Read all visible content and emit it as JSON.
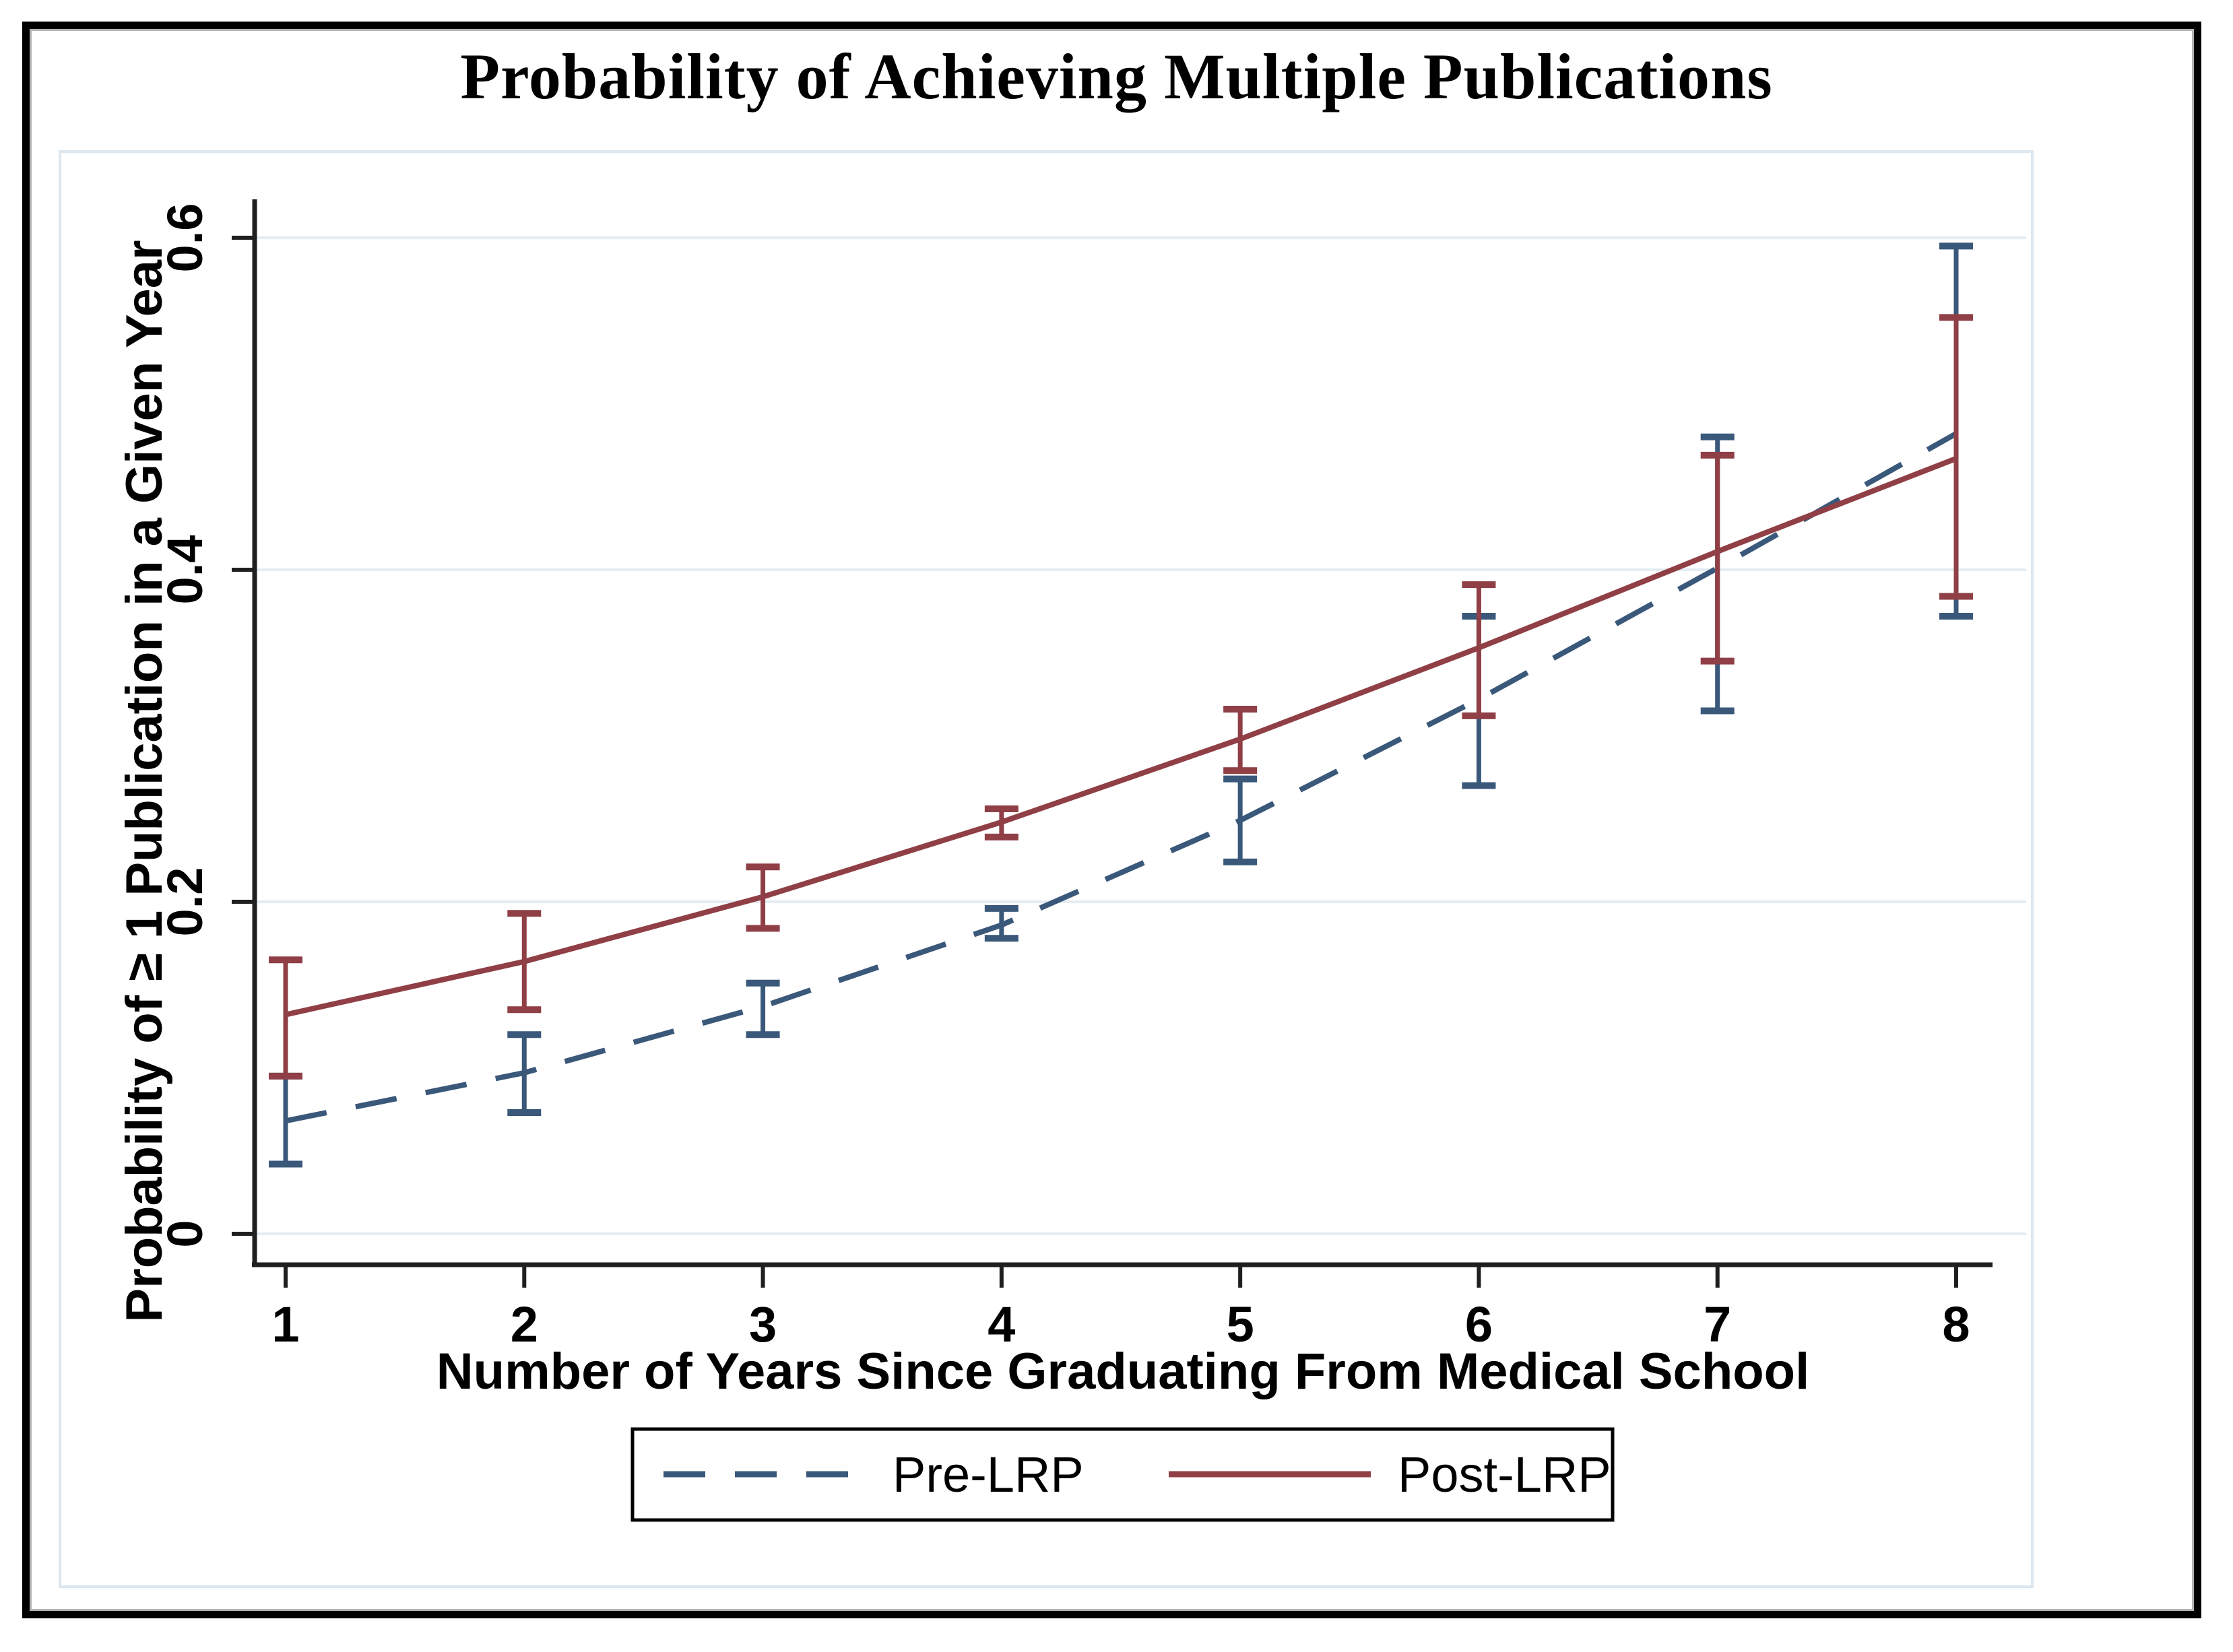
{
  "title": "Probability of Achieving Multiple Publications",
  "chart_data": {
    "type": "line",
    "title": "Probability of Achieving Multiple Publications",
    "xlabel": "Number of Years Since Graduating From Medical School",
    "ylabel": "Probability of ≥ 1 Publication in a Given Year",
    "x": [
      1,
      2,
      3,
      4,
      5,
      6,
      7,
      8
    ],
    "x_tick_labels": [
      "1",
      "2",
      "3",
      "4",
      "5",
      "6",
      "7",
      "8"
    ],
    "y_ticks": [
      {
        "value": 0.0,
        "label": "0"
      },
      {
        "value": 0.2,
        "label": "0.2"
      },
      {
        "value": 0.4,
        "label": "0.4"
      },
      {
        "value": 0.6,
        "label": "0.6"
      }
    ],
    "ylim": [
      -0.02,
      0.62
    ],
    "grid": true,
    "legend_position": "bottom",
    "colors": {
      "axis": "#1f1f1f",
      "gridline": "#e4edf3",
      "plot_border": "#dce7ef",
      "background": "#ffffff"
    },
    "series": [
      {
        "name": "Pre-LRP",
        "style": "dashed",
        "color": "#3A587A",
        "values": [
          0.068,
          0.097,
          0.137,
          0.186,
          0.249,
          0.322,
          0.401,
          0.482
        ],
        "ci_low": [
          0.042,
          0.073,
          0.12,
          0.178,
          0.224,
          0.27,
          0.315,
          0.372
        ],
        "ci_high": [
          0.095,
          0.12,
          0.151,
          0.196,
          0.274,
          0.372,
          0.48,
          0.595
        ]
      },
      {
        "name": "Post-LRP",
        "style": "solid",
        "color": "#8F3F45",
        "values": [
          0.132,
          0.164,
          0.203,
          0.248,
          0.298,
          0.353,
          0.411,
          0.467
        ],
        "ci_low": [
          0.095,
          0.135,
          0.184,
          0.239,
          0.279,
          0.312,
          0.345,
          0.384
        ],
        "ci_high": [
          0.165,
          0.193,
          0.221,
          0.256,
          0.316,
          0.391,
          0.469,
          0.552
        ]
      }
    ]
  }
}
